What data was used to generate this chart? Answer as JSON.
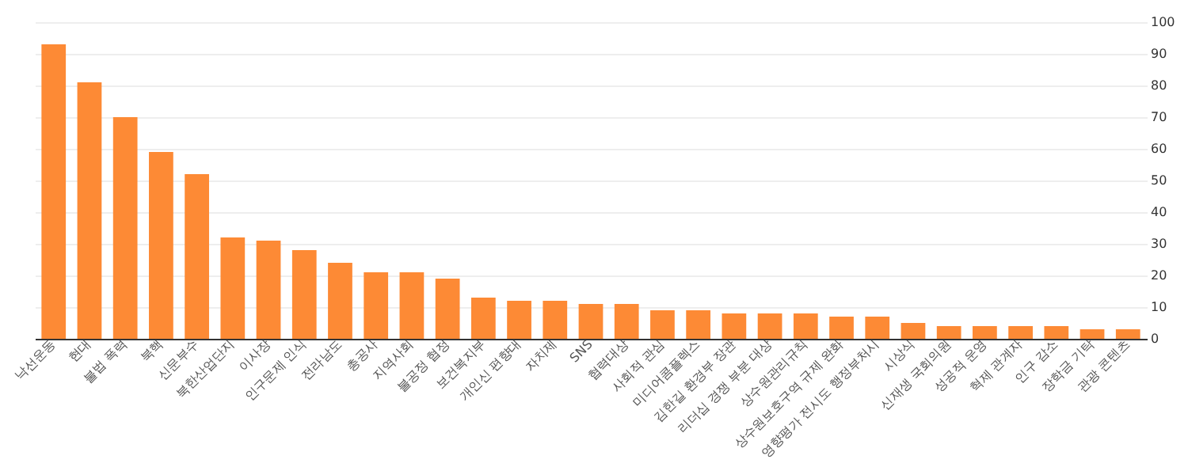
{
  "chart_data": {
    "type": "bar",
    "categories": [
      "낙선운동",
      "현대",
      "불법 폭력",
      "북핵",
      "신문부수",
      "북한산업단지",
      "이사장",
      "인구문제 인식",
      "전라남도",
      "총공사",
      "지역사회",
      "불공정 협정",
      "보건복지부",
      "개인신 편향대",
      "자치제",
      "SNS",
      "협력대상",
      "사회적 관심",
      "미디어콤플렉스",
      "김한길 환경부 장관",
      "리더십 경쟁 부분 대상",
      "상수원관리규칙",
      "상수원보호구역 규제 완화",
      "영향평가 전시도 행정부처시",
      "시상식",
      "신재생 국회의원",
      "성공적 운영",
      "혁제 관계자",
      "인구 감소",
      "장학금 기탁",
      "관광 콘텐츠"
    ],
    "values": [
      93,
      81,
      70,
      59,
      52,
      32,
      31,
      28,
      24,
      21,
      21,
      19,
      13,
      12,
      12,
      11,
      11,
      9,
      9,
      8,
      8,
      8,
      7,
      7,
      5,
      4,
      4,
      4,
      4,
      3,
      3
    ],
    "color": "#fd8a35",
    "ylim": [
      0,
      100
    ],
    "yticks": [
      0,
      10,
      20,
      30,
      40,
      50,
      60,
      70,
      80,
      90,
      100
    ],
    "grid": "y"
  }
}
